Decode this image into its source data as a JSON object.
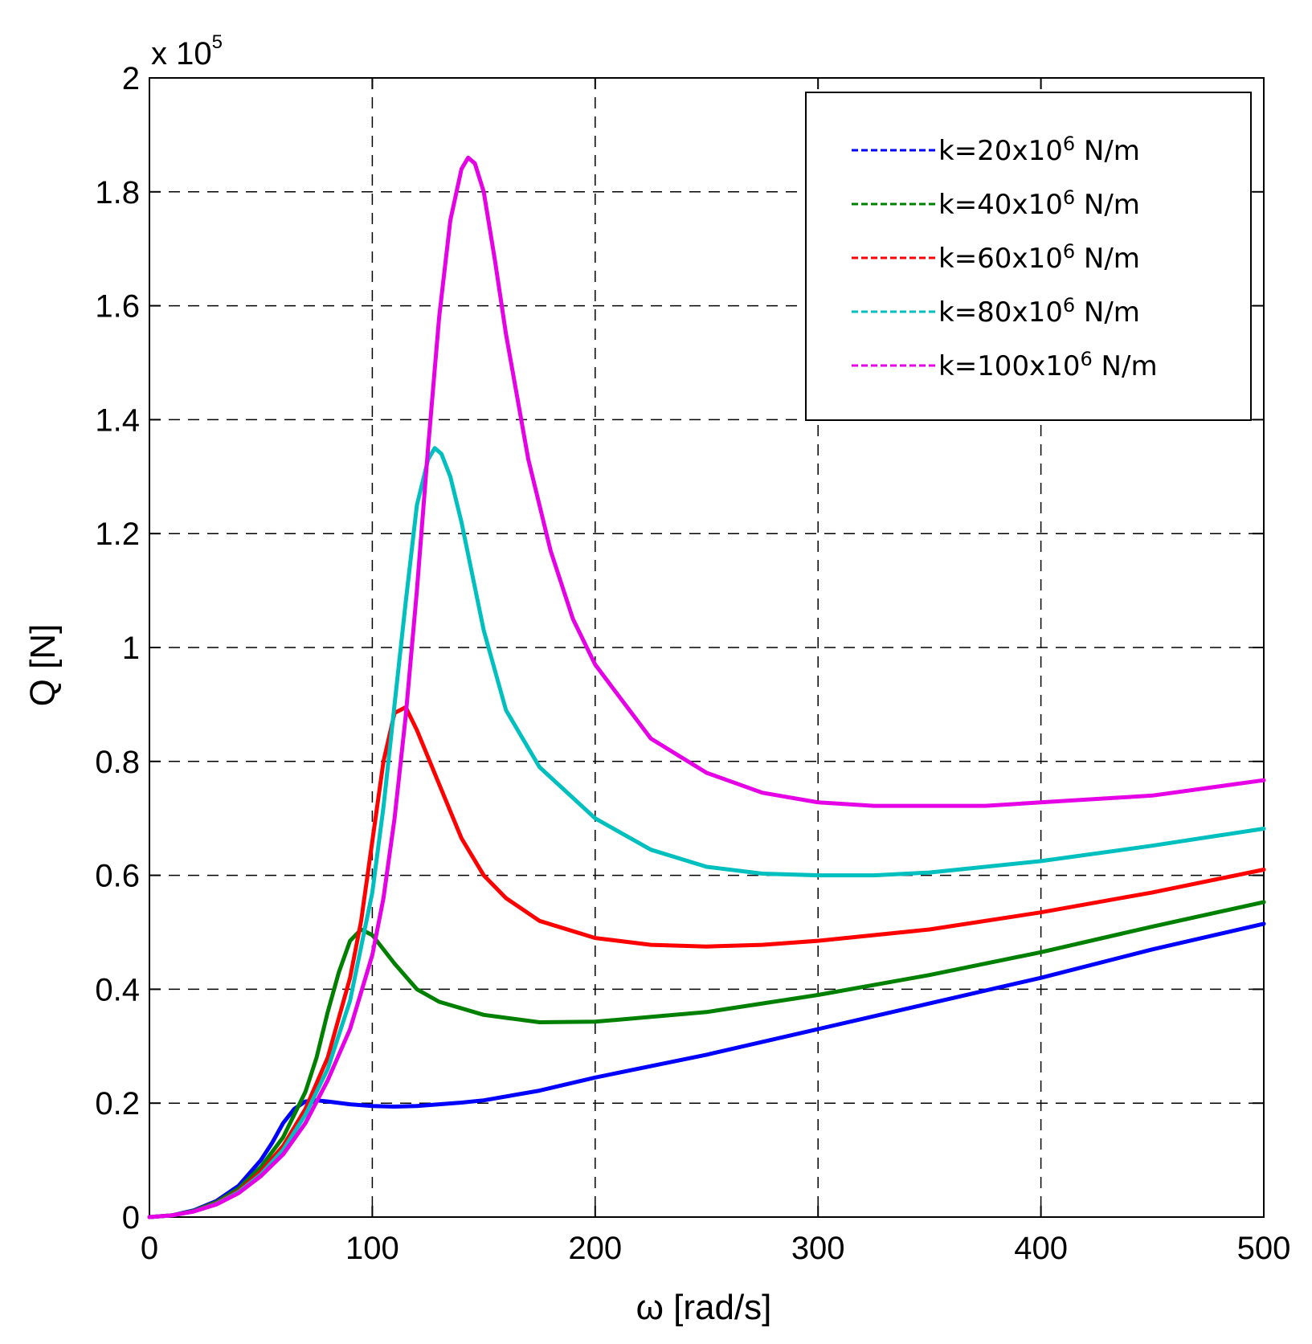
{
  "chart_data": {
    "type": "line",
    "title": "",
    "xlabel": "ω [rad/s]",
    "ylabel": "Q [N]",
    "y_multiplier": "x 10",
    "y_multiplier_exp": "5",
    "xlim": [
      0,
      500
    ],
    "ylim": [
      0,
      2
    ],
    "grid": true,
    "legend_position": "top-right",
    "x_ticks": [
      {
        "value": 0,
        "label": "0"
      },
      {
        "value": 100,
        "label": "100"
      },
      {
        "value": 200,
        "label": "200"
      },
      {
        "value": 300,
        "label": "300"
      },
      {
        "value": 400,
        "label": "400"
      },
      {
        "value": 500,
        "label": "500"
      }
    ],
    "y_ticks": [
      {
        "value": 0,
        "label": "0"
      },
      {
        "value": 0.2,
        "label": "0.2"
      },
      {
        "value": 0.4,
        "label": "0.4"
      },
      {
        "value": 0.6,
        "label": "0.6"
      },
      {
        "value": 0.8,
        "label": "0.8"
      },
      {
        "value": 1.0,
        "label": "1"
      },
      {
        "value": 1.2,
        "label": "1.2"
      },
      {
        "value": 1.4,
        "label": "1.4"
      },
      {
        "value": 1.6,
        "label": "1.6"
      },
      {
        "value": 1.8,
        "label": "1.8"
      },
      {
        "value": 2.0,
        "label": "2"
      }
    ],
    "series": [
      {
        "name": "k=20x10⁶ N/m",
        "legend_prefix": "k=20x10",
        "legend_exp": "6",
        "legend_suffix": " N/m",
        "color": "#0000ff",
        "x": [
          0,
          10,
          20,
          30,
          40,
          50,
          55,
          60,
          65,
          70,
          75,
          80,
          90,
          100,
          110,
          120,
          130,
          140,
          150,
          175,
          200,
          250,
          300,
          350,
          400,
          450,
          500
        ],
        "y": [
          0,
          0.003,
          0.012,
          0.028,
          0.055,
          0.1,
          0.13,
          0.165,
          0.19,
          0.203,
          0.205,
          0.203,
          0.198,
          0.195,
          0.194,
          0.195,
          0.198,
          0.201,
          0.205,
          0.222,
          0.245,
          0.285,
          0.33,
          0.375,
          0.42,
          0.47,
          0.515
        ]
      },
      {
        "name": "k=40x10⁶ N/m",
        "legend_prefix": "k=40x10",
        "legend_exp": "6",
        "legend_suffix": " N/m",
        "color": "#008000",
        "x": [
          0,
          10,
          20,
          30,
          40,
          50,
          60,
          70,
          75,
          80,
          85,
          90,
          95,
          100,
          110,
          120,
          130,
          150,
          175,
          200,
          250,
          300,
          350,
          400,
          450,
          500
        ],
        "y": [
          0,
          0.003,
          0.011,
          0.026,
          0.05,
          0.088,
          0.14,
          0.22,
          0.28,
          0.36,
          0.43,
          0.485,
          0.505,
          0.495,
          0.445,
          0.4,
          0.378,
          0.355,
          0.342,
          0.343,
          0.36,
          0.39,
          0.425,
          0.465,
          0.51,
          0.553
        ]
      },
      {
        "name": "k=60x10⁶ N/m",
        "legend_prefix": "k=60x10",
        "legend_exp": "6",
        "legend_suffix": " N/m",
        "color": "#ff0000",
        "x": [
          0,
          10,
          20,
          30,
          40,
          50,
          60,
          70,
          80,
          90,
          95,
          100,
          105,
          110,
          115,
          120,
          130,
          140,
          150,
          160,
          175,
          200,
          225,
          250,
          275,
          300,
          350,
          400,
          450,
          500
        ],
        "y": [
          0,
          0.003,
          0.01,
          0.024,
          0.046,
          0.08,
          0.125,
          0.19,
          0.28,
          0.42,
          0.52,
          0.66,
          0.8,
          0.885,
          0.895,
          0.855,
          0.76,
          0.665,
          0.6,
          0.56,
          0.52,
          0.49,
          0.478,
          0.475,
          0.478,
          0.485,
          0.505,
          0.535,
          0.57,
          0.61
        ]
      },
      {
        "name": "k=80x10⁶ N/m",
        "legend_prefix": "k=80x10",
        "legend_exp": "6",
        "legend_suffix": " N/m",
        "color": "#00bfbf",
        "x": [
          0,
          10,
          20,
          30,
          40,
          50,
          60,
          70,
          80,
          90,
          100,
          105,
          110,
          115,
          120,
          125,
          128,
          131,
          135,
          140,
          150,
          160,
          175,
          200,
          225,
          250,
          275,
          300,
          325,
          350,
          400,
          450,
          500
        ],
        "y": [
          0,
          0.003,
          0.01,
          0.023,
          0.044,
          0.075,
          0.118,
          0.18,
          0.26,
          0.38,
          0.57,
          0.72,
          0.9,
          1.08,
          1.25,
          1.33,
          1.35,
          1.34,
          1.3,
          1.22,
          1.03,
          0.89,
          0.79,
          0.7,
          0.645,
          0.615,
          0.603,
          0.6,
          0.6,
          0.605,
          0.625,
          0.652,
          0.682
        ]
      },
      {
        "name": "k=100x10⁶ N/m",
        "legend_prefix": "k=100x10",
        "legend_exp": "6",
        "legend_suffix": " N/m",
        "color": "#e600e6",
        "x": [
          0,
          10,
          20,
          30,
          40,
          50,
          60,
          70,
          80,
          90,
          100,
          105,
          110,
          115,
          120,
          125,
          130,
          135,
          140,
          143,
          146,
          150,
          155,
          160,
          170,
          180,
          190,
          200,
          225,
          250,
          275,
          300,
          325,
          350,
          375,
          400,
          450,
          500
        ],
        "y": [
          0,
          0.003,
          0.01,
          0.022,
          0.042,
          0.072,
          0.11,
          0.165,
          0.24,
          0.33,
          0.46,
          0.56,
          0.7,
          0.88,
          1.1,
          1.35,
          1.58,
          1.75,
          1.84,
          1.86,
          1.85,
          1.8,
          1.68,
          1.55,
          1.33,
          1.17,
          1.05,
          0.97,
          0.84,
          0.78,
          0.745,
          0.728,
          0.722,
          0.722,
          0.722,
          0.728,
          0.74,
          0.767
        ]
      }
    ]
  }
}
